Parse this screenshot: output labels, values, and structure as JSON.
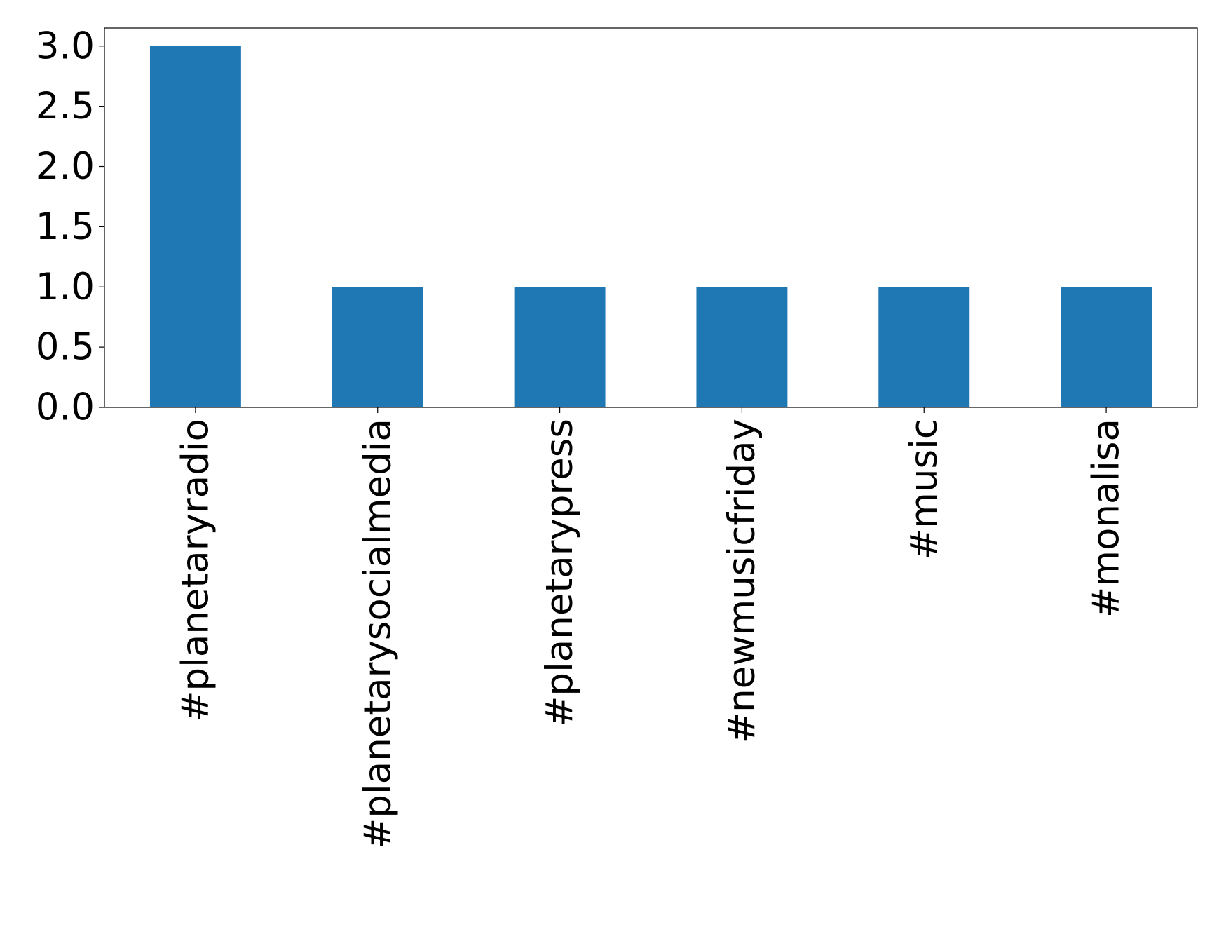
{
  "chart_data": {
    "type": "bar",
    "categories": [
      "#planetaryradio",
      "#planetarysocialmedia",
      "#planetarypress",
      "#newmusicfriday",
      "#music",
      "#monalisa"
    ],
    "values": [
      3,
      1,
      1,
      1,
      1,
      1
    ],
    "color": "#1f77b4",
    "ylim": [
      0,
      3.15
    ],
    "yticks": [
      {
        "value": 0,
        "label": "0.0"
      },
      0.5,
      {
        "value": 1,
        "label": "1.0"
      },
      1.5,
      {
        "value": 2,
        "label": "2.0"
      },
      2.5,
      {
        "value": 3,
        "label": "3.0"
      }
    ],
    "grid": false
  }
}
